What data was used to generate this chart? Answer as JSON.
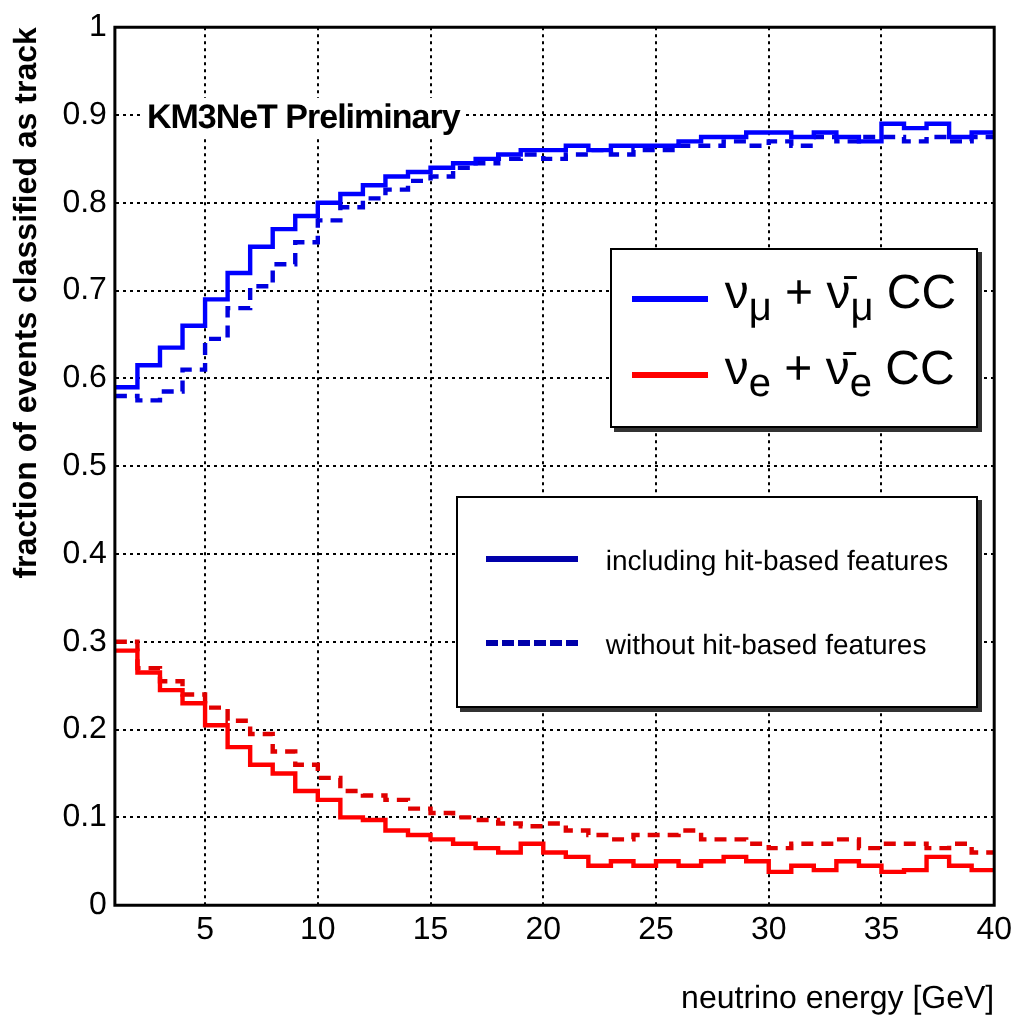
{
  "chart_data": {
    "type": "histogram",
    "xlabel": "neutrino energy [GeV]",
    "ylabel": "fraction of events classified as track",
    "bins": [
      1,
      2,
      3,
      4,
      5,
      6,
      7,
      8,
      9,
      10,
      11,
      12,
      13,
      14,
      15,
      16,
      17,
      18,
      19,
      20,
      21,
      22,
      23,
      24,
      25,
      26,
      27,
      28,
      29,
      30,
      31,
      32,
      33,
      34,
      35,
      36,
      37,
      38,
      39,
      40
    ],
    "series": [
      {
        "name": "ν$_{μ}$ + ν̄$_{μ}$ CC",
        "color": "#0000ff",
        "line_style": "solid",
        "values": [
          0.59,
          0.615,
          0.635,
          0.66,
          0.69,
          0.72,
          0.75,
          0.77,
          0.785,
          0.8,
          0.81,
          0.82,
          0.83,
          0.835,
          0.84,
          0.845,
          0.85,
          0.855,
          0.86,
          0.86,
          0.865,
          0.86,
          0.865,
          0.865,
          0.865,
          0.87,
          0.875,
          0.875,
          0.88,
          0.88,
          0.875,
          0.88,
          0.875,
          0.87,
          0.89,
          0.885,
          0.89,
          0.875,
          0.88
        ]
      },
      {
        "color": "#0000e0",
        "line_style": "dashed",
        "values": [
          0.58,
          0.575,
          0.585,
          0.61,
          0.645,
          0.68,
          0.705,
          0.73,
          0.755,
          0.78,
          0.795,
          0.805,
          0.815,
          0.825,
          0.83,
          0.84,
          0.845,
          0.85,
          0.855,
          0.85,
          0.855,
          0.86,
          0.855,
          0.86,
          0.86,
          0.865,
          0.865,
          0.87,
          0.865,
          0.87,
          0.865,
          0.875,
          0.87,
          0.875,
          0.875,
          0.87,
          0.875,
          0.87,
          0.875
        ]
      },
      {
        "name": "ν$_{e}$ + ν̄$_{e}$ CC",
        "color": "#ff0000",
        "line_style": "solid",
        "values": [
          0.29,
          0.265,
          0.245,
          0.23,
          0.205,
          0.18,
          0.16,
          0.15,
          0.13,
          0.12,
          0.1,
          0.097,
          0.085,
          0.08,
          0.075,
          0.07,
          0.065,
          0.06,
          0.07,
          0.06,
          0.055,
          0.045,
          0.05,
          0.045,
          0.05,
          0.045,
          0.05,
          0.055,
          0.05,
          0.038,
          0.045,
          0.04,
          0.05,
          0.045,
          0.038,
          0.04,
          0.055,
          0.045,
          0.04
        ]
      },
      {
        "color": "#e00000",
        "line_style": "dashed",
        "values": [
          0.3,
          0.27,
          0.255,
          0.24,
          0.225,
          0.21,
          0.195,
          0.175,
          0.16,
          0.145,
          0.13,
          0.125,
          0.12,
          0.11,
          0.105,
          0.1,
          0.097,
          0.093,
          0.09,
          0.093,
          0.085,
          0.08,
          0.075,
          0.08,
          0.08,
          0.085,
          0.075,
          0.075,
          0.07,
          0.065,
          0.07,
          0.07,
          0.075,
          0.065,
          0.07,
          0.07,
          0.065,
          0.07,
          0.06
        ]
      }
    ],
    "xlim": [
      1,
      40
    ],
    "xticks": [
      5,
      10,
      15,
      20,
      25,
      30,
      35,
      40
    ],
    "ylim": [
      0,
      1
    ],
    "yticks": [
      0,
      0.1,
      0.2,
      0.3,
      0.4,
      0.5,
      0.6,
      0.7,
      0.8,
      0.9,
      1
    ],
    "grid": true,
    "legend": "right",
    "annotations": [
      "KM3NeT Preliminary",
      "including hit-based features",
      "without hit-based features"
    ]
  }
}
